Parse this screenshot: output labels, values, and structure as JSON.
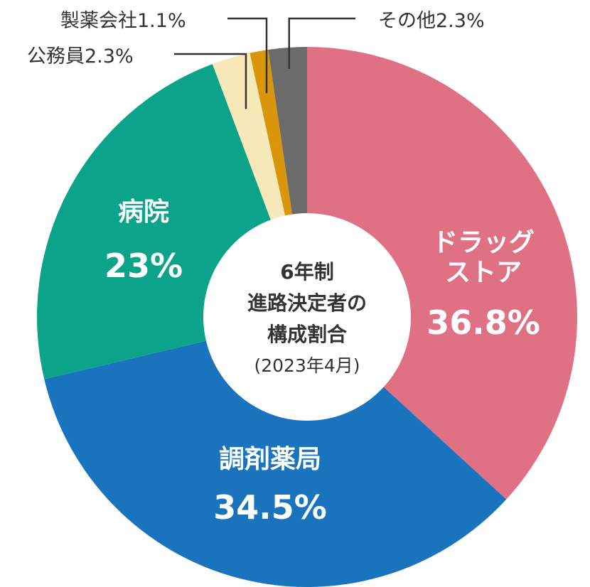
{
  "chart_data": {
    "type": "pie",
    "title_lines": [
      "6年制",
      "進路決定者の",
      "構成割合"
    ],
    "subtitle": "(2023年4月)",
    "slices": [
      {
        "name_lines": [
          "ドラッグ",
          "ストア"
        ],
        "value": 36.8,
        "value_label": "36.8%",
        "color": "#e07083",
        "label_style": "inside"
      },
      {
        "name_lines": [
          "調剤薬局"
        ],
        "value": 34.5,
        "value_label": "34.5%",
        "color": "#1a74bd",
        "label_style": "inside"
      },
      {
        "name_lines": [
          "病院"
        ],
        "value": 23,
        "value_label": "23%",
        "color": "#0ba48a",
        "label_style": "inside"
      },
      {
        "name_lines": [
          "公務員"
        ],
        "value": 2.3,
        "value_label": "2.3%",
        "color": "#f6e8b8",
        "label_style": "callout"
      },
      {
        "name_lines": [
          "製薬会社"
        ],
        "value": 1.1,
        "value_label": "1.1%",
        "color": "#d9960a",
        "label_style": "callout"
      },
      {
        "name_lines": [
          "その他"
        ],
        "value": 2.3,
        "value_label": "2.3%",
        "color": "#6b6b6b",
        "label_style": "callout"
      }
    ]
  }
}
